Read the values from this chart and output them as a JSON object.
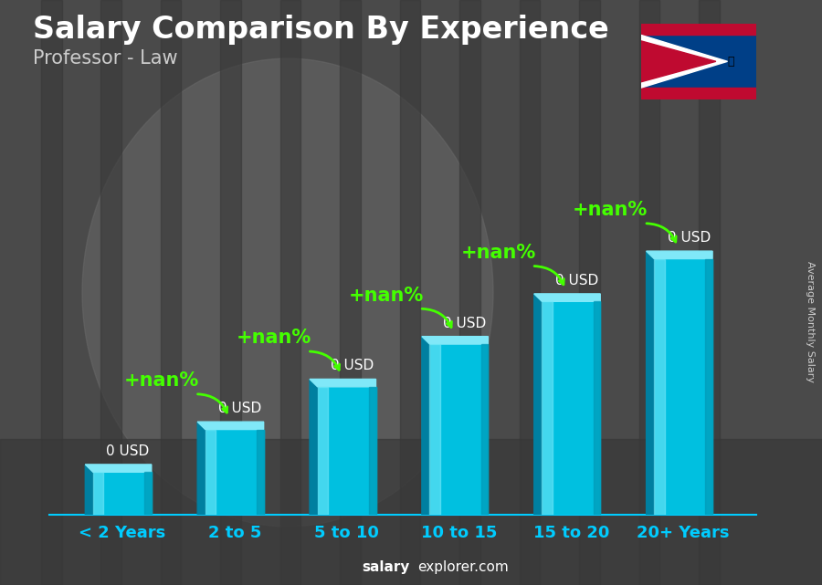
{
  "title": "Salary Comparison By Experience",
  "subtitle": "Professor - Law",
  "ylabel": "Average Monthly Salary",
  "watermark_bold": "salary",
  "watermark_normal": "explorer.com",
  "categories": [
    "< 2 Years",
    "2 to 5",
    "5 to 10",
    "10 to 15",
    "15 to 20",
    "20+ Years"
  ],
  "values": [
    1,
    2,
    3,
    4,
    5,
    6
  ],
  "bar_labels": [
    "0 USD",
    "0 USD",
    "0 USD",
    "0 USD",
    "0 USD",
    "0 USD"
  ],
  "pct_labels": [
    "+nan%",
    "+nan%",
    "+nan%",
    "+nan%",
    "+nan%"
  ],
  "bar_color_main": "#00c0e0",
  "bar_color_left": "#007fa0",
  "bar_color_top": "#80e8f8",
  "bar_highlight": "#60e0f0",
  "pct_color": "#44ff00",
  "tick_color": "#00ccff",
  "bg_color": "#5a5a5a",
  "title_fontsize": 24,
  "subtitle_fontsize": 15,
  "bar_label_fontsize": 11,
  "pct_fontsize": 15,
  "tick_fontsize": 13,
  "ylabel_fontsize": 8
}
